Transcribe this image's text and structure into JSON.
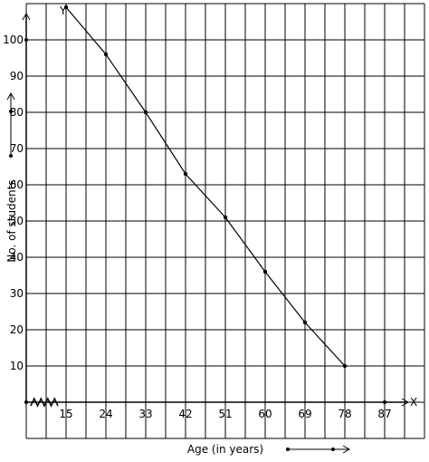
{
  "chart_data": {
    "type": "line",
    "title": "",
    "xlabel": "Age (in years)",
    "ylabel": "No. of students",
    "x_axis_letter": "X",
    "y_axis_letter": "Y",
    "x_ticks": [
      15,
      24,
      33,
      42,
      51,
      60,
      69,
      78,
      87
    ],
    "y_ticks": [
      10,
      20,
      30,
      40,
      50,
      60,
      70,
      80,
      90,
      100
    ],
    "xlim": [
      6,
      96
    ],
    "ylim": [
      -10,
      110
    ],
    "grid": true,
    "axis_break": "zigzag on x-axis",
    "series": [
      {
        "x": [
          15,
          24,
          33,
          42,
          51,
          60,
          69,
          78
        ],
        "y": [
          109,
          96,
          80,
          63,
          51,
          36,
          22,
          10
        ]
      }
    ]
  }
}
